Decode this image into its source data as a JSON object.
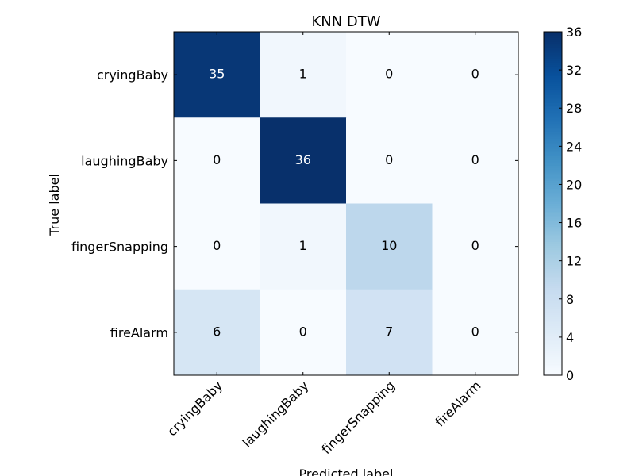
{
  "chart_data": {
    "type": "heatmap",
    "title": "KNN DTW",
    "xlabel": "Predicted label",
    "ylabel": "True label",
    "x_categories": [
      "cryingBaby",
      "laughingBaby",
      "fingerSnapping",
      "fireAlarm"
    ],
    "y_categories": [
      "cryingBaby",
      "laughingBaby",
      "fingerSnapping",
      "fireAlarm"
    ],
    "values": [
      [
        35,
        1,
        0,
        0
      ],
      [
        0,
        36,
        0,
        0
      ],
      [
        0,
        1,
        10,
        0
      ],
      [
        6,
        0,
        7,
        0
      ]
    ],
    "colorbar": {
      "min": 0,
      "max": 36,
      "ticks": [
        "0",
        "4",
        "8",
        "12",
        "16",
        "20",
        "24",
        "28",
        "32",
        "36"
      ],
      "colormap": "Blues"
    },
    "grid": false
  }
}
